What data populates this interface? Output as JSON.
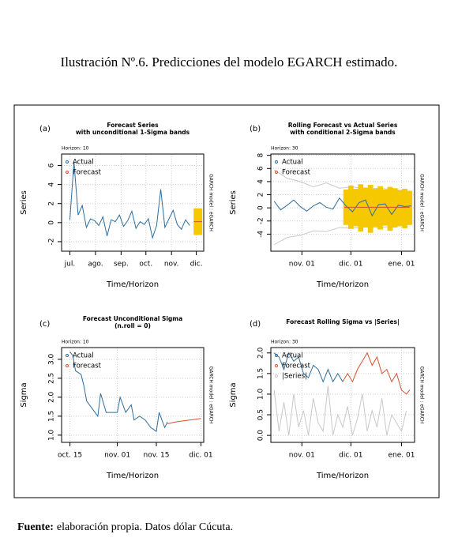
{
  "caption": "Ilustración Nº.6. Predicciones del modelo EGARCH estimado.",
  "source": {
    "label": "Fuente:",
    "text": "elaboración propia. Datos dólar Cúcuta."
  },
  "chart_data": [
    {
      "type": "line",
      "tag": "(a)",
      "title": "Forecast Series",
      "subtitle": "with unconditional 1-Sigma bands",
      "horizon": "Horizon: 10",
      "side_label": "GARCH model : eGARCH",
      "x_label": "Time/Horizon",
      "y_label": "Series",
      "xlim": [
        -10,
        162
      ],
      "xticks": [
        {
          "value": 0,
          "label": "jul."
        },
        {
          "value": 31,
          "label": "ago."
        },
        {
          "value": 62,
          "label": "sep."
        },
        {
          "value": 92,
          "label": "oct."
        },
        {
          "value": 123,
          "label": "nov."
        },
        {
          "value": 153,
          "label": "dic."
        }
      ],
      "ylim": [
        -3,
        7.2
      ],
      "yticks": [
        -2,
        0,
        2,
        4,
        6
      ],
      "grid": true,
      "series": [
        {
          "name": "Actual",
          "color": "#2f6d9c",
          "x": [
            0,
            5,
            10,
            15,
            20,
            25,
            30,
            35,
            40,
            45,
            50,
            55,
            60,
            65,
            70,
            75,
            80,
            85,
            90,
            95,
            100,
            105,
            110,
            115,
            120,
            125,
            130,
            135,
            140,
            145
          ],
          "values": [
            0.3,
            6.4,
            0.8,
            1.8,
            -0.5,
            0.4,
            0.2,
            -0.3,
            0.6,
            -1.4,
            0.3,
            0.1,
            0.8,
            -0.4,
            0.2,
            1.2,
            -0.6,
            0.1,
            -0.2,
            0.4,
            -1.6,
            -0.3,
            3.5,
            -0.5,
            0.4,
            1.3,
            -0.2,
            -0.7,
            0.3,
            -0.3
          ]
        },
        {
          "name": "Forecast",
          "color": "#d2532f",
          "x": [
            150,
            152,
            154,
            156,
            158,
            160
          ],
          "values": [
            0.1,
            0.1,
            0.1,
            0.1,
            0.1,
            0.1
          ]
        }
      ],
      "bands": [
        {
          "color": "#f5c800",
          "style": "bars",
          "x": [
            151,
            153,
            155,
            157,
            159
          ],
          "lower": [
            -1.3,
            -1.3,
            -1.3,
            -1.3,
            -1.3
          ],
          "upper": [
            1.5,
            1.5,
            1.5,
            1.5,
            1.5
          ]
        }
      ]
    },
    {
      "type": "line",
      "tag": "(b)",
      "title": "Rolling Forecast vs Actual Series",
      "subtitle": "with conditional 2-Sigma bands",
      "horizon": "Horizon: 30",
      "side_label": "GARCH model : eGARCH",
      "x_label": "Time/Horizon",
      "y_label": "Series",
      "xlim": [
        -19,
        69
      ],
      "xticks": [
        {
          "value": 0,
          "label": "nov. 01"
        },
        {
          "value": 30,
          "label": "dic. 01"
        },
        {
          "value": 61,
          "label": "ene. 01"
        }
      ],
      "ylim": [
        -6.6,
        8.2
      ],
      "yticks": [
        -4,
        -2,
        0,
        2,
        4,
        6,
        8
      ],
      "grid": true,
      "series": [
        {
          "name": "Actual",
          "color": "#2f6d9c",
          "x": [
            -17,
            -13,
            -9,
            -5,
            -1,
            3,
            7,
            11,
            15,
            19,
            23,
            27,
            31,
            35,
            39,
            43,
            47,
            51,
            55,
            59,
            63,
            67
          ],
          "values": [
            1.0,
            -0.3,
            0.4,
            1.2,
            0.2,
            -0.5,
            0.3,
            0.8,
            0.1,
            -0.2,
            1.5,
            0.3,
            -0.6,
            0.8,
            1.2,
            -1.2,
            0.5,
            0.6,
            -1.0,
            0.4,
            0.2,
            0.3
          ]
        },
        {
          "name": "Forecast",
          "color": "#d2532f",
          "x": [
            26,
            66
          ],
          "values": [
            0.1,
            0.1
          ]
        }
      ],
      "bands": [
        {
          "color": "#c8c8c8",
          "style": "lines",
          "x": [
            -17,
            -9,
            -1,
            7,
            15,
            23,
            31,
            39,
            47,
            55,
            63,
            67
          ],
          "lower": [
            -5.6,
            -4.5,
            -4.2,
            -3.5,
            -3.6,
            -3.0,
            -3.1,
            -2.9,
            -3.0,
            -2.8,
            -2.6,
            -2.5
          ],
          "upper": [
            5.8,
            4.5,
            4.0,
            3.2,
            3.8,
            3.0,
            3.2,
            2.8,
            3.0,
            2.8,
            2.6,
            2.5
          ]
        },
        {
          "color": "#f5c800",
          "style": "bars",
          "x": [
            27,
            30,
            33,
            36,
            39,
            42,
            45,
            48,
            51,
            54,
            57,
            60,
            63,
            66
          ],
          "lower": [
            -2.6,
            -3.2,
            -2.8,
            -3.6,
            -3.0,
            -3.8,
            -2.9,
            -3.3,
            -2.7,
            -3.5,
            -3.0,
            -2.8,
            -3.1,
            -2.6
          ],
          "upper": [
            2.8,
            3.4,
            2.9,
            3.6,
            3.1,
            3.5,
            2.9,
            3.3,
            2.8,
            3.2,
            3.0,
            2.7,
            2.9,
            2.6
          ]
        }
      ]
    },
    {
      "type": "line",
      "tag": "(c)",
      "title": "Forecast Unconditional Sigma",
      "subtitle": "(n.roll = 0)",
      "horizon": "Horizon: 10",
      "side_label": "GARCH model : eGARCH",
      "x_label": "Time/Horizon",
      "y_label": "Sigma",
      "xlim": [
        -3,
        48
      ],
      "xticks": [
        {
          "value": 0,
          "label": "oct. 15"
        },
        {
          "value": 17,
          "label": "nov. 01"
        },
        {
          "value": 31,
          "label": "nov. 15"
        },
        {
          "value": 47,
          "label": "dic. 01"
        }
      ],
      "ylim": [
        0.81,
        3.31
      ],
      "yticks": [
        {
          "value": 1,
          "label": "1.0"
        },
        1.5,
        {
          "value": 2,
          "label": "2.0"
        },
        2.5,
        {
          "value": 3,
          "label": "3.0"
        }
      ],
      "grid": true,
      "series": [
        {
          "name": "Actual",
          "color": "#2f6d9c",
          "x": [
            0,
            1,
            2,
            4,
            5,
            6,
            8,
            10,
            11,
            13,
            15,
            17,
            18,
            20,
            22,
            23,
            25,
            27,
            29,
            31,
            32,
            34,
            35
          ],
          "values": [
            3.2,
            3.1,
            2.7,
            2.6,
            2.3,
            1.9,
            1.7,
            1.5,
            2.1,
            1.6,
            1.6,
            1.6,
            2.0,
            1.6,
            1.8,
            1.4,
            1.5,
            1.4,
            1.2,
            1.1,
            1.6,
            1.2,
            1.35
          ]
        },
        {
          "name": "Forecast",
          "color": "#d2532f",
          "x": [
            35,
            38,
            41,
            44,
            47
          ],
          "values": [
            1.3,
            1.35,
            1.38,
            1.41,
            1.44
          ]
        }
      ],
      "bands": []
    },
    {
      "type": "line",
      "tag": "(d)",
      "title": "Forecast Rolling Sigma vs |Series|",
      "horizon": "Horizon: 30",
      "side_label": "GARCH model : eGARCH",
      "x_label": "Time/Horizon",
      "y_label": "Sigma",
      "xlim": [
        -19,
        69
      ],
      "xticks": [
        {
          "value": 0,
          "label": "nov. 01"
        },
        {
          "value": 30,
          "label": "dic. 01"
        },
        {
          "value": 61,
          "label": "ene. 01"
        }
      ],
      "ylim": [
        -0.17,
        2.13
      ],
      "yticks": [
        {
          "value": 0,
          "label": "0.0"
        },
        0.5,
        {
          "value": 1,
          "label": "1.0"
        },
        1.5,
        {
          "value": 2,
          "label": "2.0"
        }
      ],
      "grid": true,
      "series": [
        {
          "name": "Actual",
          "color": "#2f6d9c",
          "x": [
            -17,
            -14,
            -11,
            -8,
            -5,
            -2,
            1,
            4,
            7,
            10,
            13,
            16,
            19,
            22,
            25
          ],
          "values": [
            2.0,
            1.9,
            1.6,
            2.0,
            1.8,
            1.9,
            1.5,
            1.4,
            1.7,
            1.6,
            1.3,
            1.6,
            1.3,
            1.5,
            1.3
          ]
        },
        {
          "name": "Forecast",
          "color": "#d2532f",
          "x": [
            25,
            28,
            31,
            34,
            37,
            40,
            43,
            46,
            49,
            52,
            55,
            58,
            61,
            64,
            66
          ],
          "values": [
            1.3,
            1.5,
            1.3,
            1.6,
            1.8,
            2.0,
            1.7,
            1.9,
            1.5,
            1.6,
            1.3,
            1.5,
            1.1,
            1.0,
            1.1
          ]
        },
        {
          "name": "|Series|",
          "color": "#c8c8c8",
          "x": [
            -17,
            -14,
            -11,
            -8,
            -5,
            -2,
            1,
            4,
            7,
            10,
            13,
            16,
            19,
            22,
            25,
            28,
            31,
            34,
            37,
            40,
            43,
            46,
            49,
            52,
            55,
            58,
            61,
            64
          ],
          "values": [
            1.1,
            0.1,
            0.8,
            0.0,
            1.0,
            0.2,
            0.6,
            0.0,
            0.9,
            0.3,
            0.1,
            1.2,
            0.0,
            0.5,
            0.2,
            0.7,
            0.0,
            0.4,
            1.0,
            0.1,
            0.6,
            0.2,
            0.9,
            0.0,
            0.5,
            0.3,
            0.1,
            0.6
          ]
        }
      ],
      "bands": []
    }
  ]
}
